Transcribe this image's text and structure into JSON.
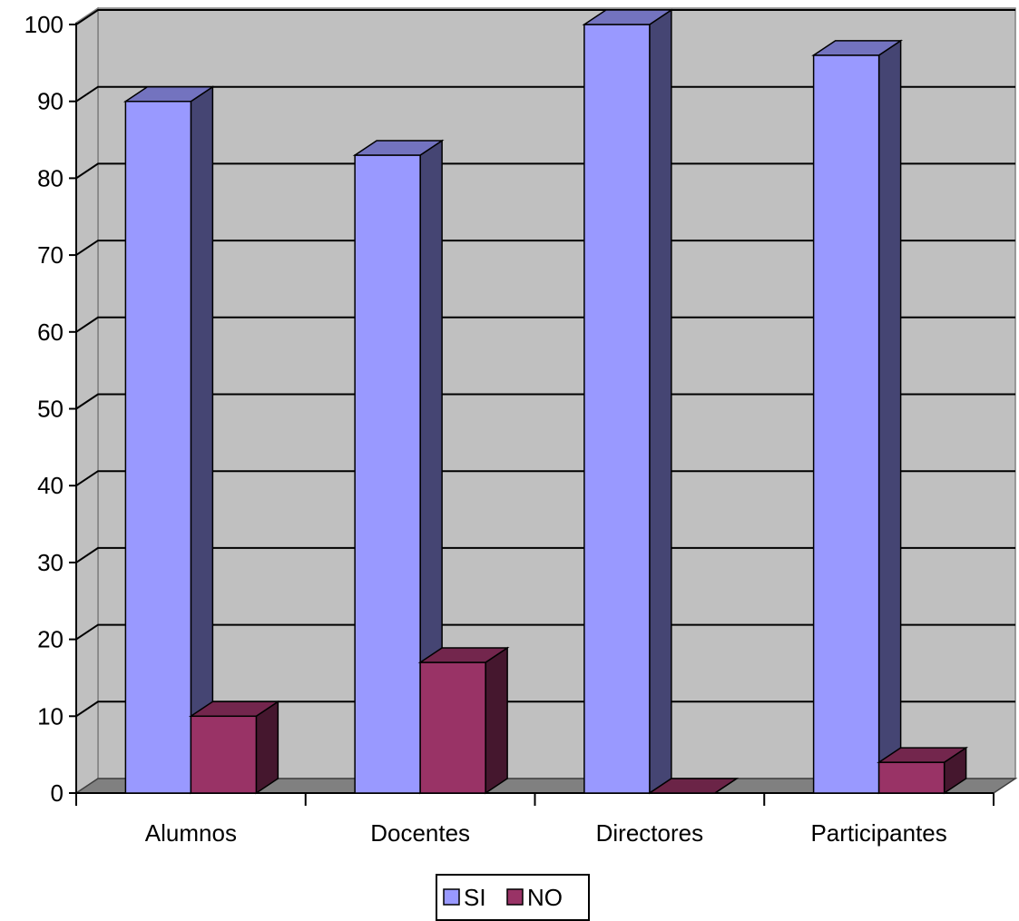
{
  "chart_data": {
    "type": "bar",
    "categories": [
      "Alumnos",
      "Docentes",
      "Directores",
      "Participantes"
    ],
    "series": [
      {
        "name": "SI",
        "values": [
          90,
          83,
          100,
          96
        ]
      },
      {
        "name": "NO",
        "values": [
          10,
          17,
          0,
          4
        ]
      }
    ],
    "ylim": [
      0,
      100
    ],
    "yticks": [
      "0",
      "10",
      "20",
      "30",
      "40",
      "50",
      "60",
      "70",
      "80",
      "90",
      "100"
    ],
    "grid": true,
    "legend_position": "bottom",
    "colors": {
      "SI": "#9999ff",
      "NO": "#993366",
      "wall": "#c0c0c0",
      "floor": "#808080"
    }
  }
}
